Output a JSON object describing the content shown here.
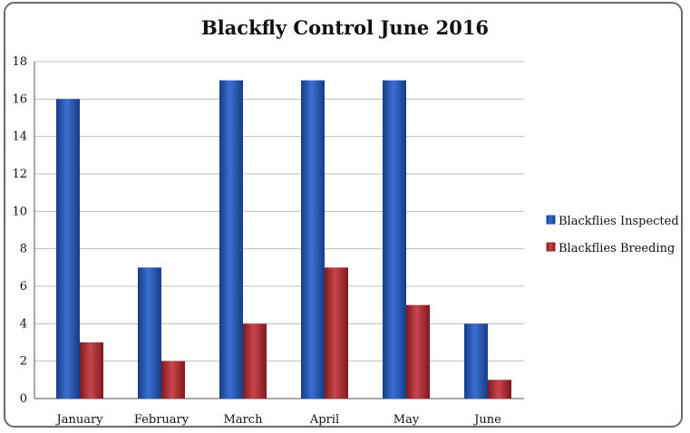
{
  "chart_data": {
    "type": "bar",
    "title": "Blackfly Control June 2016",
    "xlabel": "",
    "ylabel": "",
    "categories": [
      "January",
      "February",
      "March",
      "April",
      "May",
      "June"
    ],
    "series": [
      {
        "name": "Blackflies Inspected",
        "values": [
          16,
          7,
          17,
          17,
          17,
          4
        ],
        "color": "#1f4fa8"
      },
      {
        "name": "Blackflies Breeding",
        "values": [
          3,
          2,
          4,
          7,
          5,
          1
        ],
        "color": "#a3242b"
      }
    ],
    "ylim": [
      0,
      18
    ],
    "yticks": [
      "0",
      "2",
      "4",
      "6",
      "8",
      "10",
      "12",
      "14",
      "16",
      "18"
    ],
    "grid": true,
    "legend_position": "right"
  }
}
